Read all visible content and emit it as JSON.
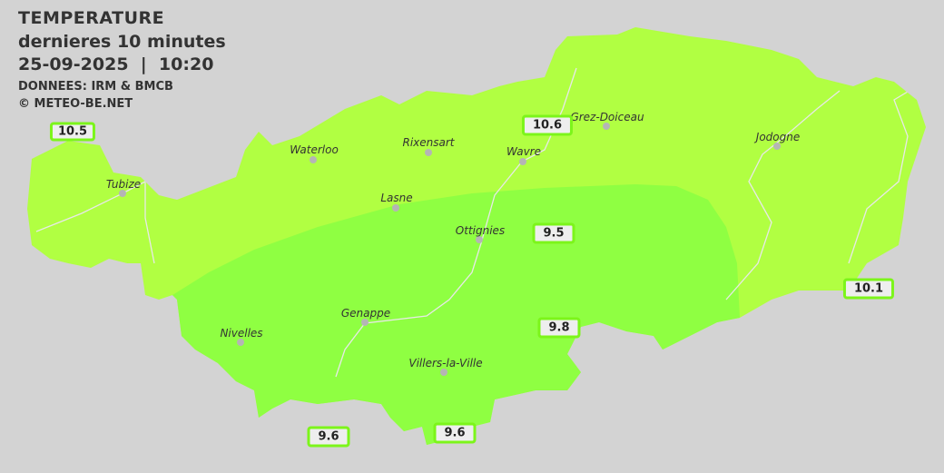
{
  "header": {
    "title": "TEMPERATURE",
    "subtitle": "dernieres 10 minutes",
    "datetime": "25-09-2025  |  10:20",
    "source": "DONNEES: IRM & BMCB",
    "copyright": "© METEO-BE.NET"
  },
  "colors": {
    "background": "#d3d3d3",
    "zone_warm": "#b1ff42",
    "zone_cool": "#8fff42",
    "label_border": "#7cf51a"
  },
  "cities": [
    {
      "name": "Waterloo"
    },
    {
      "name": "Rixensart"
    },
    {
      "name": "Wavre"
    },
    {
      "name": "Grez-Doiceau"
    },
    {
      "name": "Jodogne"
    },
    {
      "name": "Tubize"
    },
    {
      "name": "Lasne"
    },
    {
      "name": "Ottignies"
    },
    {
      "name": "Genappe"
    },
    {
      "name": "Nivelles"
    },
    {
      "name": "Villers-la-Ville"
    }
  ],
  "stations": [
    {
      "value": "10.5"
    },
    {
      "value": "10.6"
    },
    {
      "value": "9.5"
    },
    {
      "value": "10.1"
    },
    {
      "value": "9.8"
    },
    {
      "value": "9.6"
    },
    {
      "value": "9.6"
    }
  ]
}
